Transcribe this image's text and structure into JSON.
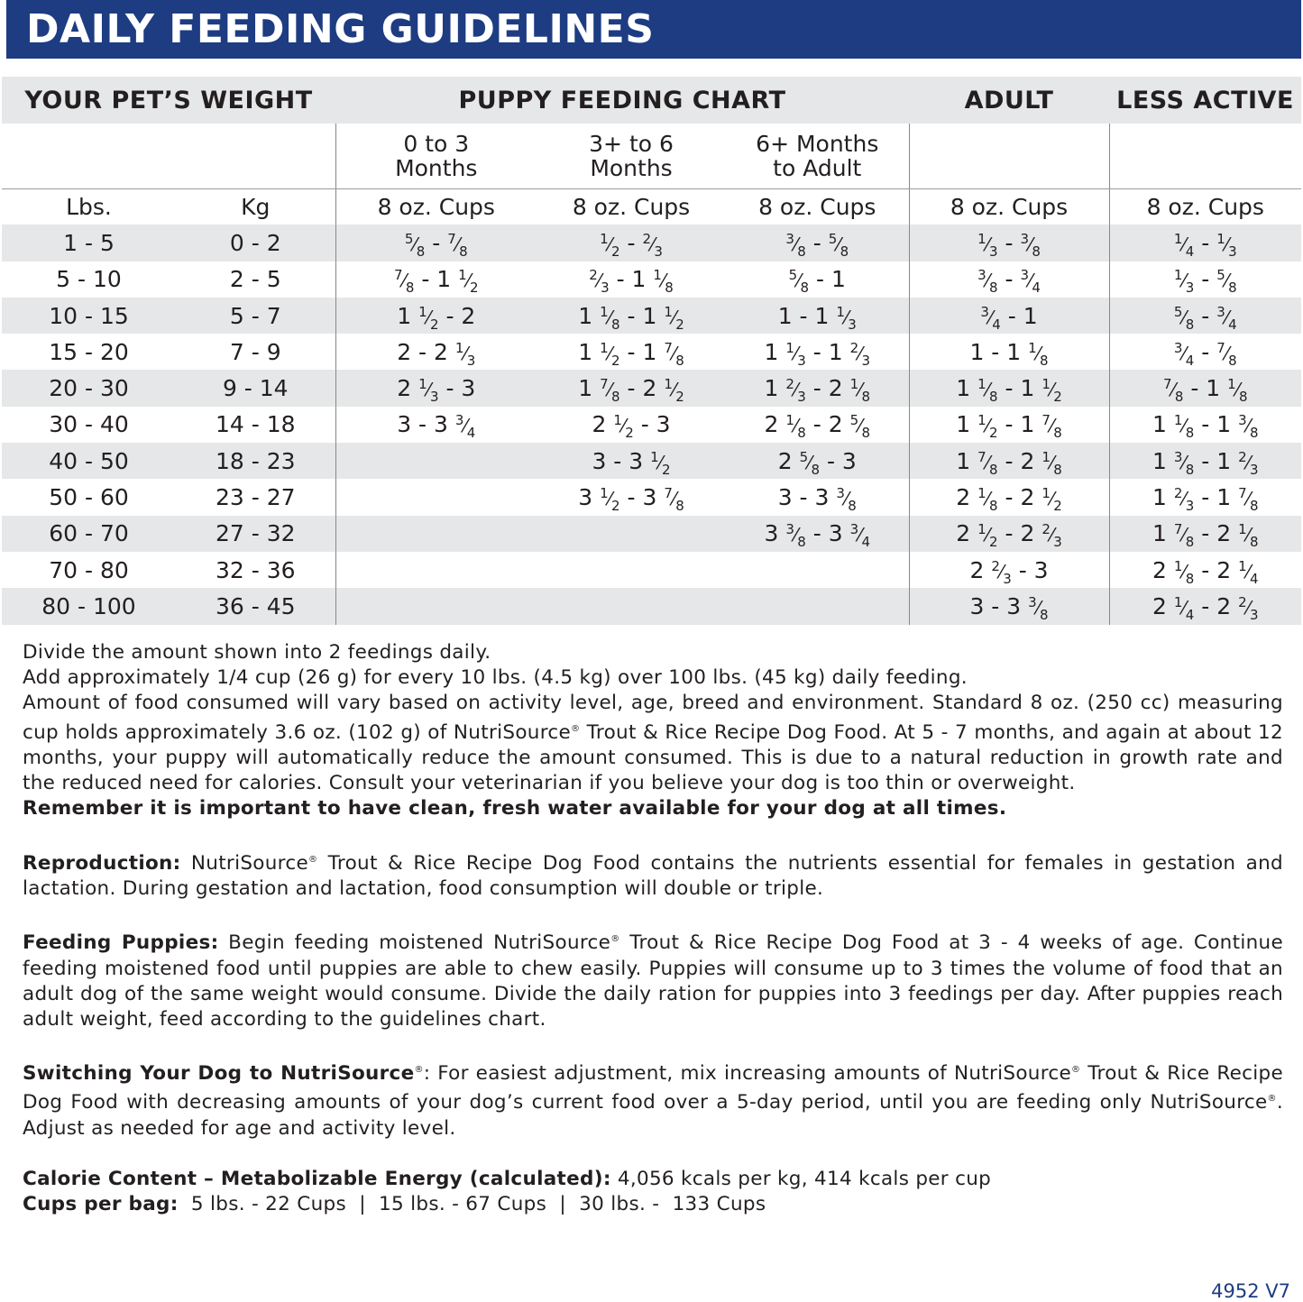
{
  "title": "DAILY FEEDING GUIDELINES",
  "table": {
    "headers": {
      "weight": "YOUR PET’S WEIGHT",
      "puppy": "PUPPY FEEDING CHART",
      "adult": "ADULT",
      "less_active": "LESS ACTIVE"
    },
    "age_groups": [
      "0 to 3 Months",
      "3+ to 6 Months",
      "6+ Months to Adult"
    ],
    "units": [
      "Lbs.",
      "Kg",
      "8 oz. Cups",
      "8 oz. Cups",
      "8 oz. Cups",
      "8 oz. Cups",
      "8 oz. Cups"
    ],
    "rows": [
      [
        "1 - 5",
        "0 - 2",
        "5/8 - 7/8",
        "1/2 - 2/3",
        "3/8 - 5/8",
        "1/3 - 3/8",
        "1/4 - 1/3"
      ],
      [
        "5 - 10",
        "2 - 5",
        "7/8 - 1 1/2",
        "2/3 - 1 1/8",
        "5/8 - 1",
        "3/8 - 3/4",
        "1/3 - 5/8"
      ],
      [
        "10 - 15",
        "5 - 7",
        "1 1/2 - 2",
        "1 1/8 - 1 1/2",
        "1 - 1 1/3",
        "3/4 - 1",
        "5/8 - 3/4"
      ],
      [
        "15 - 20",
        "7 - 9",
        "2 - 2 1/3",
        "1 1/2 - 1 7/8",
        "1 1/3 - 1 2/3",
        "1 - 1 1/8",
        "3/4 - 7/8"
      ],
      [
        "20 - 30",
        "9 - 14",
        "2 1/3 - 3",
        "1 7/8 - 2 1/2",
        "1 2/3 - 2 1/8",
        "1 1/8 - 1 1/2",
        "7/8 - 1 1/8"
      ],
      [
        "30 - 40",
        "14 - 18",
        "3 - 3 3/4",
        "2 1/2 - 3",
        "2 1/8 - 2 5/8",
        "1 1/2 - 1 7/8",
        "1 1/8 - 1 3/8"
      ],
      [
        "40 - 50",
        "18 - 23",
        "",
        "3 - 3 1/2",
        "2 5/8 - 3",
        "1 7/8 - 2 1/8",
        "1 3/8 - 1 2/3"
      ],
      [
        "50 - 60",
        "23 - 27",
        "",
        "3 1/2 - 3 7/8",
        "3 - 3 3/8",
        "2 1/8 - 2 1/2",
        "1 2/3 - 1 7/8"
      ],
      [
        "60 - 70",
        "27 - 32",
        "",
        "",
        "3 3/8 - 3 3/4",
        "2 1/2 - 2 2/3",
        "1 7/8 - 2 1/8"
      ],
      [
        "70 - 80",
        "32 - 36",
        "",
        "",
        "",
        "2 2/3 - 3",
        "2 1/8 - 2 1/4"
      ],
      [
        "80 - 100",
        "36 - 45",
        "",
        "",
        "",
        "3 - 3 3/8",
        "2 1/4 - 2 2/3"
      ]
    ]
  },
  "notes": {
    "l1": "Divide the amount shown into 2 feedings daily.",
    "l2": "Add approximately 1/4 cup (26 g) for every 10 lbs. (4.5 kg) over 100 lbs. (45 kg) daily feeding.",
    "l3a": "Amount of food consumed will vary based on activity level, age, breed and environment. Standard 8 oz. (250 cc) measuring cup holds approximately 3.6 oz. (102 g)  of NutriSource",
    "l3b": " Trout & Rice Recipe Dog Food. At 5 - 7 months, and again at about 12 months, your puppy will automatically reduce the amount consumed. This is due to a natural reduction in growth rate and the reduced need for calories. Consult your veterinarian if you believe your dog is too thin or overweight.",
    "water": "Remember it is important to have clean, fresh water available for your dog at all times.",
    "repro_label": "Reproduction:",
    "repro_a": " NutriSource",
    "repro_b": " Trout & Rice Recipe Dog Food contains the nutrients essential for females in gestation and lactation. During gestation and lactation, food consumption will double or triple.",
    "puppies_label": "Feeding Puppies:",
    "puppies_a": " Begin feeding moistened NutriSource",
    "puppies_b": " Trout & Rice Recipe Dog Food at 3 - 4 weeks of age. Continue feeding moistened food until puppies are able to chew easily. Puppies will consume up to 3 times the volume of food that an adult dog of the same weight would consume. Divide the daily ration for puppies into 3 feedings per day. After puppies reach adult weight, feed according to the guidelines chart.",
    "switch_label": "Switching Your Dog to NutriSource",
    "switch_a": ": For easiest adjustment, mix increasing amounts of NutriSource",
    "switch_b": " Trout & Rice Recipe Dog Food with decreasing amounts of your dog’s current food over a 5-day period, until you are feeding only NutriSource",
    "switch_c": ". Adjust as needed for age and activity level.",
    "reg": "®",
    "calorie_label": "Calorie Content – Metabolizable Energy (calculated):",
    "calorie_value": " 4,056 kcals per kg, 414 kcals per cup",
    "cups_label": "Cups per bag:",
    "cups_value": "  5 lbs. - 22 Cups  |  15 lbs. - 67 Cups  |  30 lbs. -  133 Cups"
  },
  "version": "4952 V7",
  "colors": {
    "banner": "#1d3c82",
    "stripe": "#e6e7e8"
  }
}
